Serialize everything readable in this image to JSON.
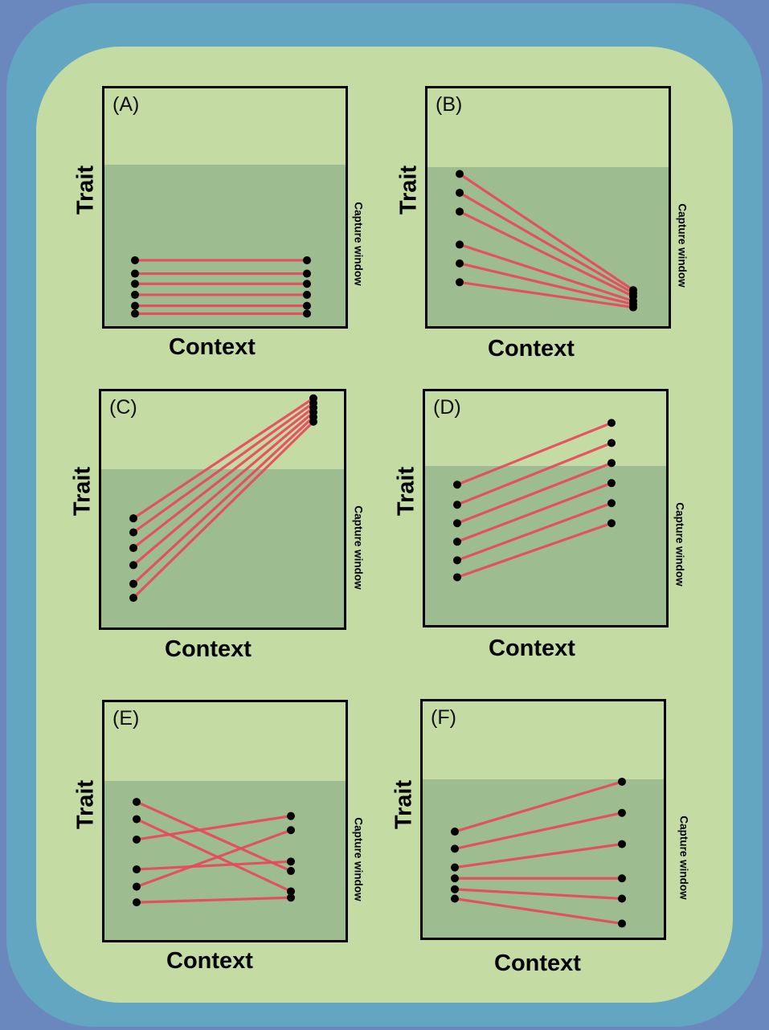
{
  "axes": {
    "trait_label": "Trait",
    "context_label": "Context",
    "window_label": "Capture window"
  },
  "colors": {
    "line": "#e8485c",
    "dot": "#000000",
    "window": "#9dbd91",
    "background": "#c4dca4"
  },
  "panels": [
    {
      "label": "(A)",
      "window_top": 0.68,
      "lines": [
        [
          0.42,
          0.42
        ],
        [
          0.335,
          0.335
        ],
        [
          0.27,
          0.27
        ],
        [
          0.2,
          0.2
        ],
        [
          0.13,
          0.13
        ],
        [
          0.08,
          0.08
        ]
      ]
    },
    {
      "label": "(B)",
      "window_top": 0.67,
      "lines": [
        [
          0.97,
          0.23
        ],
        [
          0.85,
          0.21
        ],
        [
          0.73,
          0.19
        ],
        [
          0.52,
          0.16
        ],
        [
          0.4,
          0.14
        ],
        [
          0.28,
          0.12
        ]
      ]
    },
    {
      "label": "(C)",
      "window_top": 0.67,
      "lines": [
        [
          0.7,
          1.47
        ],
        [
          0.61,
          1.44
        ],
        [
          0.51,
          1.41
        ],
        [
          0.4,
          1.38
        ],
        [
          0.28,
          1.35
        ],
        [
          0.19,
          1.32
        ]
      ]
    },
    {
      "label": "(D)",
      "window_top": 0.68,
      "lines": [
        [
          0.91,
          1.31
        ],
        [
          0.78,
          1.18
        ],
        [
          0.66,
          1.05
        ],
        [
          0.54,
          0.92
        ],
        [
          0.42,
          0.79
        ],
        [
          0.31,
          0.66
        ]
      ]
    },
    {
      "label": "(E)",
      "window_top": 0.67,
      "lines": [
        [
          0.88,
          0.44
        ],
        [
          0.77,
          0.31
        ],
        [
          0.64,
          0.79
        ],
        [
          0.45,
          0.5
        ],
        [
          0.34,
          0.7
        ],
        [
          0.24,
          0.27
        ]
      ]
    },
    {
      "label": "(F)",
      "window_top": 0.67,
      "lines": [
        [
          0.68,
          1.0
        ],
        [
          0.57,
          0.8
        ],
        [
          0.45,
          0.6
        ],
        [
          0.38,
          0.38
        ],
        [
          0.31,
          0.25
        ],
        [
          0.25,
          0.09
        ]
      ]
    }
  ]
}
